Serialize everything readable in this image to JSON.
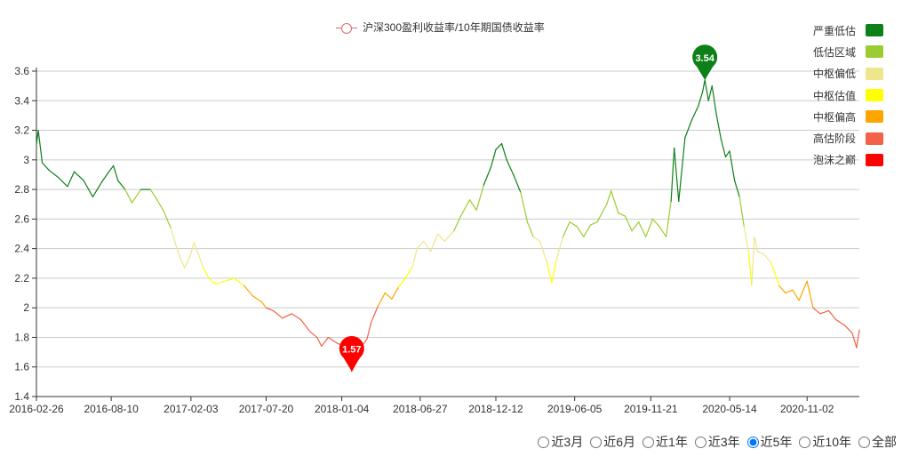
{
  "legend": {
    "series_label": "沪深300盈利收益率/10年期国债收益率",
    "series_color": "#d96a6a"
  },
  "zones": [
    {
      "label": "严重低估",
      "color": "#0d8018",
      "min": 2.8,
      "max": 9
    },
    {
      "label": "低估区域",
      "color": "#9acd32",
      "min": 2.5,
      "max": 2.8
    },
    {
      "label": "中枢偏低",
      "color": "#eee68c",
      "min": 2.3,
      "max": 2.5
    },
    {
      "label": "中枢估值",
      "color": "#ffff00",
      "min": 2.15,
      "max": 2.3
    },
    {
      "label": "中枢偏高",
      "color": "#ffa500",
      "min": 2.0,
      "max": 2.15
    },
    {
      "label": "高估阶段",
      "color": "#f26148",
      "min": 1.6,
      "max": 2.0
    },
    {
      "label": "泡沫之巅",
      "color": "#ff0000",
      "min": 0,
      "max": 1.6
    }
  ],
  "range_options": [
    "近3月",
    "近6月",
    "近1年",
    "近3年",
    "近5年",
    "近10年",
    "全部"
  ],
  "range_selected": "近5年",
  "chart_data": {
    "type": "line",
    "series_name": "沪深300盈利收益率/10年期国债收益率",
    "ylim": [
      1.4,
      3.6
    ],
    "yticks": [
      1.4,
      1.6,
      1.8,
      2,
      2.2,
      2.4,
      2.6,
      2.8,
      3,
      3.2,
      3.4,
      3.6
    ],
    "xlim": [
      "2016-02-26",
      "2021-02-26"
    ],
    "xticks": [
      "2016-02-26",
      "2016-08-10",
      "2017-02-03",
      "2017-07-20",
      "2018-01-04",
      "2018-06-27",
      "2018-12-12",
      "2019-06-05",
      "2019-11-21",
      "2020-05-14",
      "2020-11-02"
    ],
    "grid": true,
    "markers": [
      {
        "label": "3.54",
        "date": "2020-03-20",
        "value": 3.54,
        "color": "#0d8018"
      },
      {
        "label": "1.57",
        "date": "2018-01-26",
        "value": 1.57,
        "color": "#ff0000"
      }
    ],
    "points": [
      [
        "2016-02-26",
        3.1
      ],
      [
        "2016-03-01",
        3.2
      ],
      [
        "2016-03-10",
        2.98
      ],
      [
        "2016-03-25",
        2.93
      ],
      [
        "2016-04-15",
        2.88
      ],
      [
        "2016-05-05",
        2.82
      ],
      [
        "2016-05-20",
        2.92
      ],
      [
        "2016-06-10",
        2.86
      ],
      [
        "2016-06-30",
        2.75
      ],
      [
        "2016-07-20",
        2.85
      ],
      [
        "2016-08-05",
        2.92
      ],
      [
        "2016-08-15",
        2.96
      ],
      [
        "2016-08-25",
        2.86
      ],
      [
        "2016-09-10",
        2.8
      ],
      [
        "2016-09-25",
        2.71
      ],
      [
        "2016-10-15",
        2.8
      ],
      [
        "2016-11-05",
        2.8
      ],
      [
        "2016-11-20",
        2.73
      ],
      [
        "2016-12-05",
        2.65
      ],
      [
        "2016-12-20",
        2.54
      ],
      [
        "2017-01-01",
        2.42
      ],
      [
        "2017-01-10",
        2.34
      ],
      [
        "2017-01-20",
        2.27
      ],
      [
        "2017-02-01",
        2.35
      ],
      [
        "2017-02-10",
        2.44
      ],
      [
        "2017-02-20",
        2.36
      ],
      [
        "2017-03-01",
        2.28
      ],
      [
        "2017-03-15",
        2.2
      ],
      [
        "2017-03-30",
        2.16
      ],
      [
        "2017-04-20",
        2.18
      ],
      [
        "2017-05-10",
        2.2
      ],
      [
        "2017-06-01",
        2.15
      ],
      [
        "2017-06-20",
        2.08
      ],
      [
        "2017-07-10",
        2.04
      ],
      [
        "2017-07-20",
        2.0
      ],
      [
        "2017-08-05",
        1.98
      ],
      [
        "2017-08-25",
        1.93
      ],
      [
        "2017-09-15",
        1.96
      ],
      [
        "2017-10-05",
        1.92
      ],
      [
        "2017-10-25",
        1.84
      ],
      [
        "2017-11-10",
        1.8
      ],
      [
        "2017-11-20",
        1.74
      ],
      [
        "2017-12-05",
        1.8
      ],
      [
        "2017-12-25",
        1.76
      ],
      [
        "2018-01-10",
        1.74
      ],
      [
        "2018-01-20",
        1.65
      ],
      [
        "2018-01-26",
        1.57
      ],
      [
        "2018-02-05",
        1.63
      ],
      [
        "2018-02-15",
        1.73
      ],
      [
        "2018-03-01",
        1.79
      ],
      [
        "2018-03-10",
        1.9
      ],
      [
        "2018-03-25",
        2.01
      ],
      [
        "2018-04-10",
        2.1
      ],
      [
        "2018-04-25",
        2.06
      ],
      [
        "2018-05-10",
        2.14
      ],
      [
        "2018-05-25",
        2.2
      ],
      [
        "2018-06-10",
        2.28
      ],
      [
        "2018-06-20",
        2.4
      ],
      [
        "2018-07-05",
        2.45
      ],
      [
        "2018-07-20",
        2.38
      ],
      [
        "2018-08-05",
        2.5
      ],
      [
        "2018-08-20",
        2.45
      ],
      [
        "2018-09-10",
        2.52
      ],
      [
        "2018-09-25",
        2.62
      ],
      [
        "2018-10-15",
        2.73
      ],
      [
        "2018-10-30",
        2.66
      ],
      [
        "2018-11-15",
        2.83
      ],
      [
        "2018-12-01",
        2.95
      ],
      [
        "2018-12-12",
        3.07
      ],
      [
        "2018-12-25",
        3.11
      ],
      [
        "2019-01-05",
        3.0
      ],
      [
        "2019-01-20",
        2.9
      ],
      [
        "2019-02-05",
        2.78
      ],
      [
        "2019-02-20",
        2.58
      ],
      [
        "2019-03-05",
        2.48
      ],
      [
        "2019-03-20",
        2.45
      ],
      [
        "2019-04-05",
        2.3
      ],
      [
        "2019-04-15",
        2.17
      ],
      [
        "2019-04-25",
        2.32
      ],
      [
        "2019-05-10",
        2.48
      ],
      [
        "2019-05-25",
        2.58
      ],
      [
        "2019-06-10",
        2.55
      ],
      [
        "2019-06-25",
        2.48
      ],
      [
        "2019-07-10",
        2.56
      ],
      [
        "2019-07-25",
        2.58
      ],
      [
        "2019-08-15",
        2.7
      ],
      [
        "2019-08-25",
        2.79
      ],
      [
        "2019-09-10",
        2.64
      ],
      [
        "2019-09-25",
        2.62
      ],
      [
        "2019-10-10",
        2.52
      ],
      [
        "2019-10-25",
        2.58
      ],
      [
        "2019-11-10",
        2.48
      ],
      [
        "2019-11-25",
        2.6
      ],
      [
        "2019-12-10",
        2.55
      ],
      [
        "2019-12-25",
        2.48
      ],
      [
        "2020-01-05",
        2.72
      ],
      [
        "2020-01-12",
        3.08
      ],
      [
        "2020-01-22",
        2.72
      ],
      [
        "2020-02-05",
        3.15
      ],
      [
        "2020-02-20",
        3.27
      ],
      [
        "2020-03-05",
        3.36
      ],
      [
        "2020-03-15",
        3.46
      ],
      [
        "2020-03-20",
        3.54
      ],
      [
        "2020-03-28",
        3.4
      ],
      [
        "2020-04-05",
        3.5
      ],
      [
        "2020-04-15",
        3.3
      ],
      [
        "2020-04-25",
        3.14
      ],
      [
        "2020-05-05",
        3.02
      ],
      [
        "2020-05-14",
        3.06
      ],
      [
        "2020-05-25",
        2.86
      ],
      [
        "2020-06-05",
        2.75
      ],
      [
        "2020-06-15",
        2.55
      ],
      [
        "2020-06-25",
        2.38
      ],
      [
        "2020-07-02",
        2.15
      ],
      [
        "2020-07-08",
        2.48
      ],
      [
        "2020-07-15",
        2.38
      ],
      [
        "2020-07-30",
        2.36
      ],
      [
        "2020-08-15",
        2.3
      ],
      [
        "2020-09-01",
        2.15
      ],
      [
        "2020-09-15",
        2.1
      ],
      [
        "2020-10-01",
        2.12
      ],
      [
        "2020-10-15",
        2.05
      ],
      [
        "2020-11-02",
        2.18
      ],
      [
        "2020-11-15",
        2.0
      ],
      [
        "2020-12-01",
        1.96
      ],
      [
        "2020-12-20",
        1.98
      ],
      [
        "2021-01-05",
        1.92
      ],
      [
        "2021-01-25",
        1.88
      ],
      [
        "2021-02-10",
        1.83
      ],
      [
        "2021-02-20",
        1.73
      ],
      [
        "2021-02-26",
        1.85
      ]
    ]
  }
}
